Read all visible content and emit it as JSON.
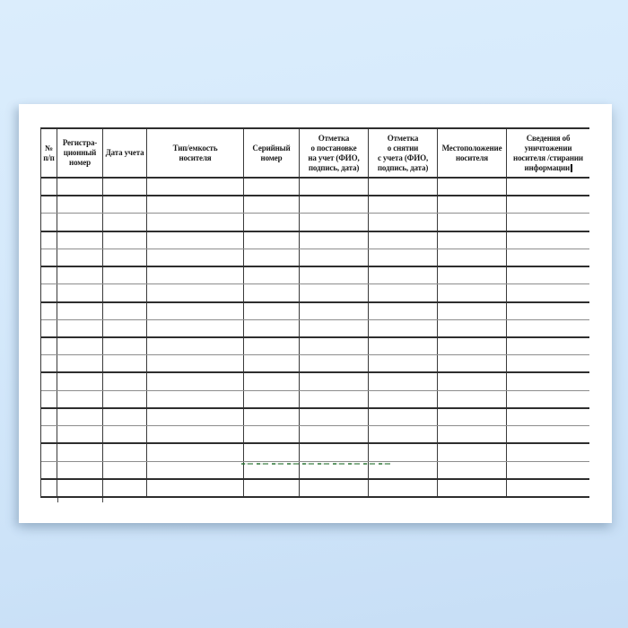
{
  "document": {
    "kind": "registration-journal-blank-form",
    "language": "ru"
  },
  "table": {
    "columns": [
      {
        "label": "№ п/п",
        "lines": [
          "№",
          "п/п"
        ]
      },
      {
        "label": "Регистрационный номер",
        "lines": [
          "Регистра-",
          "ционный",
          "номер"
        ]
      },
      {
        "label": "Дата учета",
        "lines": [
          "Дата учета"
        ]
      },
      {
        "label": "Тип/емкость носителя",
        "lines": [
          "Тип/емкость",
          "носителя"
        ]
      },
      {
        "label": "Серийный номер",
        "lines": [
          "Серийный",
          "номер"
        ]
      },
      {
        "label": "Отметка о постановке на учет (ФИО, подпись, дата)",
        "lines": [
          "Отметка",
          "о постановке",
          "на учет (ФИО,",
          "подпись, дата)"
        ]
      },
      {
        "label": "Отметка о снятии с учета (ФИО, подпись, дата)",
        "lines": [
          "Отметка",
          "о снятии",
          "с учета (ФИО,",
          "подпись, дата)"
        ]
      },
      {
        "label": "Местоположение носителя",
        "lines": [
          "Местоположение",
          "носителя"
        ]
      },
      {
        "label": "Сведения об уничтожении носителя /стирании информации",
        "lines": [
          "Сведения об",
          "уничтожении",
          "носителя /стирании",
          "информации"
        ]
      }
    ],
    "body_row_count": 18,
    "body_cells_empty": true
  },
  "caret": {
    "visible": true,
    "position": "after last header word информации"
  },
  "watermark": {
    "style": "faint dotted green line",
    "color": "#267030"
  },
  "colors": {
    "background_top": "#dbedfc",
    "background_bottom": "#c7def6",
    "sheet": "#ffffff",
    "grid_strong": "#2e2e2e",
    "grid_light": "#8d8d8d",
    "header_text": "#1c1c1c"
  }
}
